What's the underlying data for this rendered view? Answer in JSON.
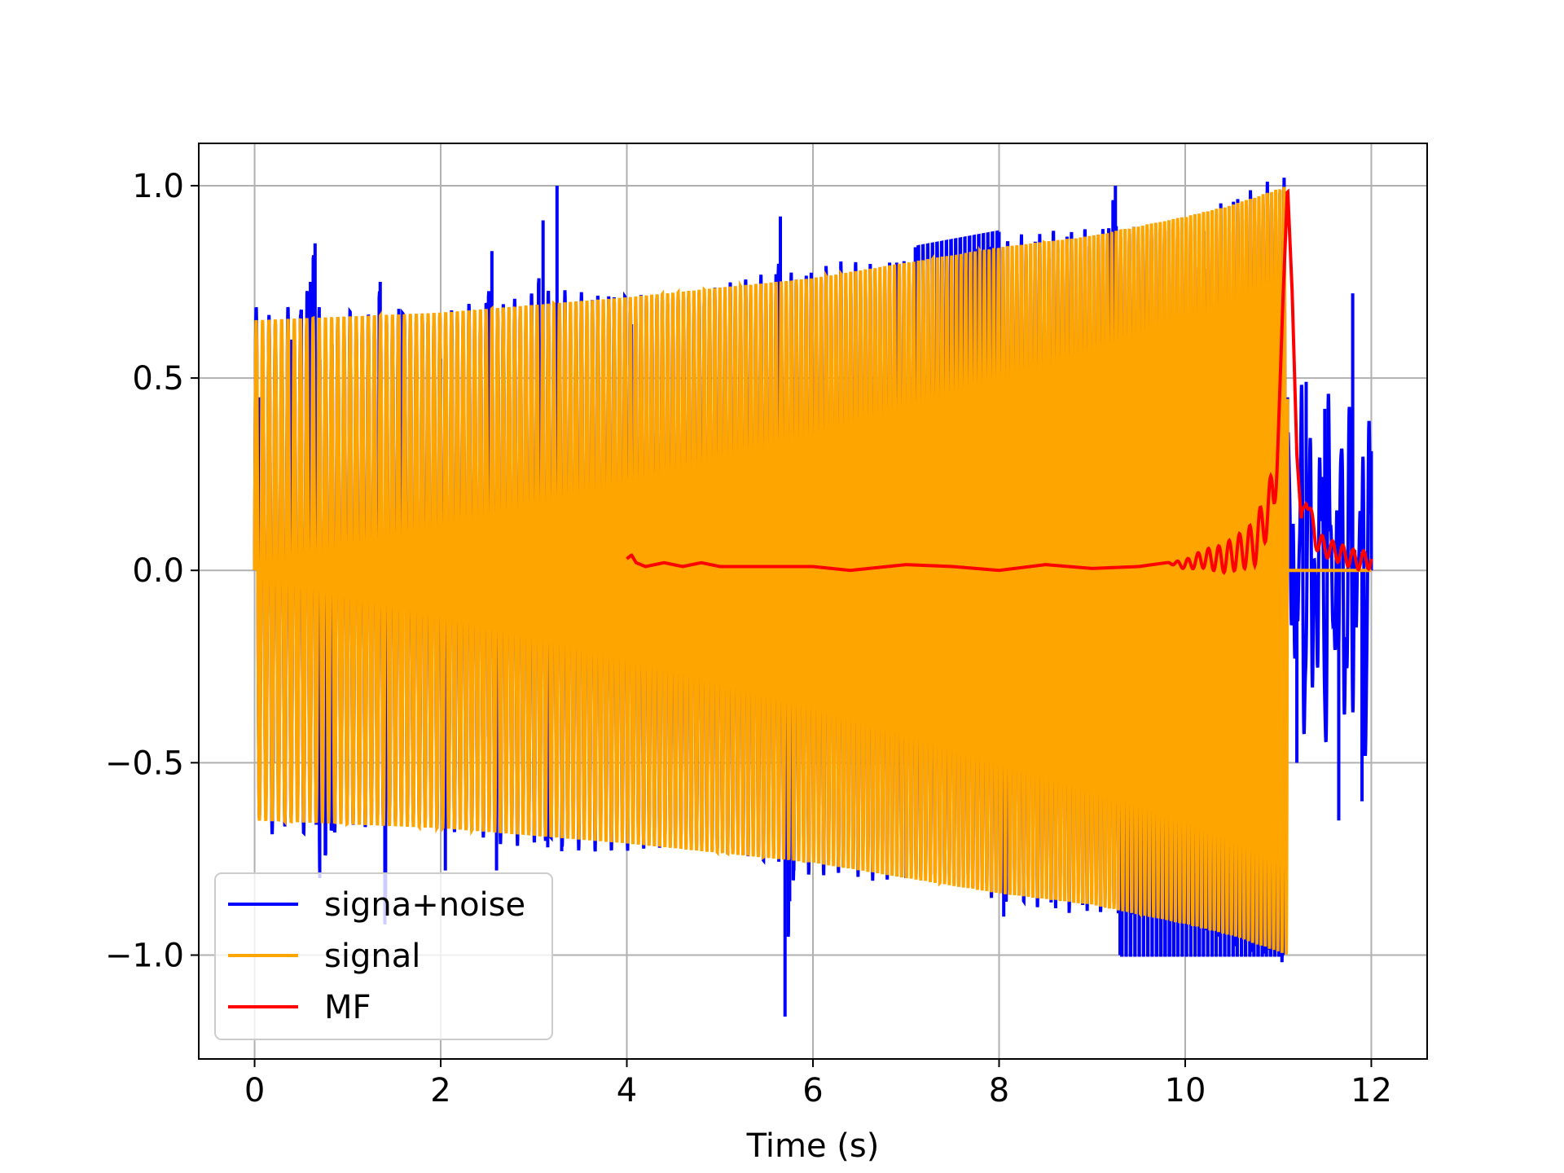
{
  "chart_data": {
    "type": "line",
    "title": "",
    "xlabel": "Time (s)",
    "ylabel": "",
    "xlim": [
      -0.6,
      12.6
    ],
    "ylim": [
      -1.27,
      1.11
    ],
    "xticks": [
      0,
      2,
      4,
      6,
      8,
      10,
      12
    ],
    "yticks": [
      1.0,
      0.5,
      0.0,
      -0.5,
      -1.0
    ],
    "xtick_labels": [
      "0",
      "2",
      "4",
      "6",
      "8",
      "10",
      "12"
    ],
    "ytick_labels": [
      "1.0",
      "0.5",
      "0.0",
      "−0.5",
      "−1.0"
    ],
    "grid": true,
    "legend_position": "lower-left",
    "legend": [
      {
        "name": "signa+noise",
        "color": "#0000ff"
      },
      {
        "name": "signal",
        "color": "#ffa500"
      },
      {
        "name": "MF",
        "color": "#ff0000"
      }
    ],
    "series": [
      {
        "name": "signa+noise",
        "color": "#0000ff",
        "description": "signal plus noise; samples approx",
        "x": [
          0,
          0.05,
          0.2,
          0.4,
          0.6,
          0.65,
          0.7,
          1.0,
          1.35,
          1.4,
          1.55,
          2.0,
          2.05,
          2.55,
          2.6,
          3.1,
          3.15,
          3.25,
          3.3,
          4.05,
          5.6,
          5.65,
          5.7,
          5.75,
          6.9,
          7.0,
          7.1,
          8.0,
          8.05,
          9.25,
          9.3,
          11.05,
          11.1,
          11.2,
          11.3,
          11.5,
          11.65,
          11.8,
          11.9,
          12.0
        ],
        "y": [
          0.0,
          0.45,
          -0.5,
          0.6,
          0.75,
          0.85,
          -0.8,
          -0.5,
          0.75,
          -0.92,
          0.68,
          0.55,
          -0.78,
          0.83,
          -0.78,
          0.91,
          -0.72,
          1.0,
          -0.73,
          0.64,
          0.6,
          0.92,
          -1.16,
          -0.86,
          0.8,
          -0.8,
          0.84,
          0.88,
          -0.9,
          1.0,
          -1.0,
          -1.0,
          0.45,
          -0.5,
          0.49,
          0.42,
          -0.65,
          0.72,
          -0.6,
          0.31
        ]
      },
      {
        "name": "signal",
        "color": "#ffa500",
        "description": "oscillating signal with rising envelope from 0 to 11.1 s, then zero",
        "envelope_x": [
          0,
          2,
          4,
          6,
          8,
          9,
          10,
          10.5,
          11.1,
          11.15,
          12.0
        ],
        "envelope_y": [
          0.65,
          0.67,
          0.71,
          0.76,
          0.84,
          0.87,
          0.92,
          0.95,
          1.0,
          0.0,
          0.0
        ]
      },
      {
        "name": "MF",
        "color": "#ff0000",
        "description": "matched filter output, peak at 11.1 s",
        "x": [
          4.0,
          4.05,
          4.1,
          4.2,
          4.4,
          4.6,
          4.8,
          5.0,
          5.5,
          6.0,
          6.4,
          7.0,
          7.5,
          8.0,
          8.5,
          9.0,
          9.5,
          9.8,
          10.0,
          10.2,
          10.4,
          10.6,
          10.75,
          10.85,
          10.95,
          11.0,
          11.05,
          11.1,
          11.15,
          11.2,
          11.25,
          11.3,
          11.4,
          11.5,
          11.6,
          11.7,
          11.8,
          11.9,
          12.0
        ],
        "y": [
          0.03,
          0.04,
          0.02,
          0.01,
          0.02,
          0.01,
          0.02,
          0.01,
          0.01,
          0.01,
          0.0,
          0.015,
          0.01,
          0.0,
          0.015,
          0.005,
          0.01,
          0.02,
          0.015,
          0.03,
          0.03,
          0.05,
          0.07,
          0.13,
          0.2,
          0.35,
          0.7,
          1.0,
          0.72,
          0.3,
          0.12,
          0.2,
          0.08,
          0.06,
          0.05,
          0.04,
          0.03,
          0.025,
          0.03
        ]
      }
    ]
  }
}
